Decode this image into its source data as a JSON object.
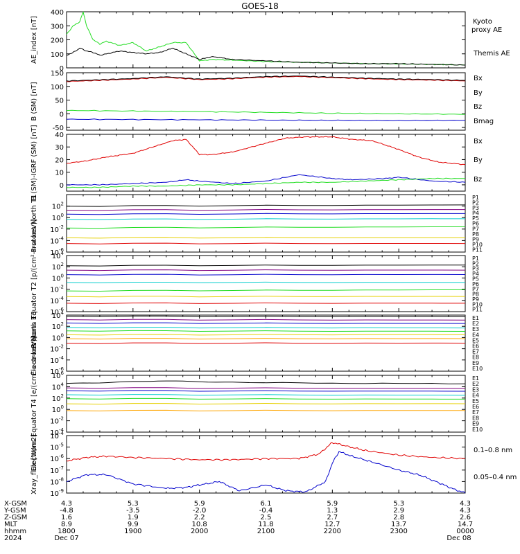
{
  "title": "GOES-18",
  "colors": {
    "black": "#000000",
    "red": "#e00000",
    "green": "#22dd22",
    "blue": "#0000cc",
    "darkblue": "#1b1bb0",
    "cyan": "#00cccc",
    "orange": "#ffa500",
    "yellow": "#e6d000"
  },
  "time_axis": {
    "ticks": [
      "1800",
      "1900",
      "2000",
      "2100",
      "2200",
      "2300",
      "0000"
    ],
    "rows": [
      {
        "label": "X-GSM",
        "values": [
          "4.3",
          "5.3",
          "5.9",
          "6.1",
          "5.9",
          "5.3",
          "4.3"
        ]
      },
      {
        "label": "Y-GSM",
        "values": [
          "-4.8",
          "-3.5",
          "-2.0",
          "-0.4",
          "1.3",
          "2.9",
          "4.3"
        ]
      },
      {
        "label": "Z-GSM",
        "values": [
          "1.6",
          "1.9",
          "2.2",
          "2.5",
          "2.7",
          "2.8",
          "2.6"
        ]
      },
      {
        "label": "MLT",
        "values": [
          "8.9",
          "9.9",
          "10.8",
          "11.8",
          "12.7",
          "13.7",
          "14.7"
        ]
      },
      {
        "label": "hhmm",
        "values": [
          "1800",
          "1900",
          "2000",
          "2100",
          "2200",
          "2300",
          "0000"
        ]
      }
    ],
    "year": "2024",
    "start_date": "Dec 07",
    "end_date": "Dec 08"
  },
  "chart_data": [
    {
      "type": "line",
      "panel": "ae",
      "ylabel": "AE_index [nT]",
      "ylim": [
        0,
        400
      ],
      "yticks": [
        "0",
        "100",
        "200",
        "300",
        "400"
      ],
      "series": [
        {
          "name": "Kyoto proxy AE",
          "color": "#22dd22",
          "x": [
            18.0,
            18.1,
            18.2,
            18.25,
            18.3,
            18.4,
            18.5,
            18.6,
            18.8,
            19.0,
            19.2,
            19.4,
            19.6,
            19.8,
            20.0,
            20.2,
            20.5,
            21.0,
            21.5,
            22.0,
            22.5,
            23.0,
            23.5,
            24.0
          ],
          "values": [
            240,
            300,
            330,
            400,
            300,
            200,
            170,
            190,
            160,
            180,
            120,
            150,
            180,
            180,
            50,
            60,
            55,
            45,
            40,
            35,
            30,
            28,
            25,
            20
          ]
        },
        {
          "name": "Themis AE",
          "color": "#000000",
          "x": [
            18.0,
            18.1,
            18.2,
            18.3,
            18.4,
            18.5,
            18.6,
            18.8,
            19.0,
            19.2,
            19.4,
            19.6,
            19.8,
            20.0,
            20.2,
            20.5,
            21.0,
            21.5,
            22.0,
            22.5,
            23.0,
            23.5,
            24.0
          ],
          "values": [
            90,
            110,
            140,
            120,
            110,
            90,
            100,
            120,
            110,
            100,
            110,
            140,
            100,
            60,
            80,
            60,
            50,
            40,
            35,
            30,
            30,
            25,
            20
          ]
        }
      ]
    },
    {
      "type": "line",
      "panel": "bsm",
      "ylabel": "B (SM) [nT]",
      "ylim": [
        -60,
        150
      ],
      "yticks": [
        "-50",
        "0",
        "50",
        "100",
        "150"
      ],
      "series": [
        {
          "name": "Bx",
          "color": "#0000cc",
          "x": [
            18,
            19,
            20,
            21,
            22,
            23,
            24
          ],
          "values": [
            -20,
            -21,
            -22,
            -23,
            -24,
            -25,
            -24
          ]
        },
        {
          "name": "By",
          "color": "#22dd22",
          "x": [
            18,
            19,
            20,
            21,
            22,
            23,
            24
          ],
          "values": [
            12,
            10,
            8,
            5,
            2,
            0,
            -2
          ]
        },
        {
          "name": "Bz",
          "color": "#e00000",
          "x": [
            18,
            18.5,
            19,
            19.5,
            20,
            20.5,
            21,
            21.5,
            22,
            22.5,
            23,
            23.5,
            24
          ],
          "values": [
            118,
            122,
            127,
            133,
            125,
            128,
            134,
            136,
            132,
            128,
            125,
            123,
            120
          ]
        },
        {
          "name": "Bmag",
          "color": "#000000",
          "x": [
            18,
            18.5,
            19,
            19.5,
            20,
            20.5,
            21,
            21.5,
            22,
            22.5,
            23,
            23.5,
            24
          ],
          "values": [
            120,
            124,
            129,
            135,
            127,
            130,
            136,
            138,
            134,
            130,
            127,
            125,
            122
          ]
        }
      ]
    },
    {
      "type": "line",
      "panel": "bigrf",
      "ylabel": "B (SM)-IGRF (SM) [nT]",
      "ylim": [
        -5,
        40
      ],
      "yticks": [
        "0",
        "10",
        "20",
        "30",
        "40"
      ],
      "series": [
        {
          "name": "Bx",
          "color": "#0000cc",
          "x": [
            18,
            18.5,
            19,
            19.5,
            19.8,
            20,
            20.5,
            21,
            21.5,
            22,
            22.3,
            22.8,
            23,
            23.5,
            24
          ],
          "values": [
            0,
            0,
            1,
            2,
            4,
            3,
            1,
            3,
            8,
            5,
            4,
            5,
            6,
            3,
            2
          ]
        },
        {
          "name": "By",
          "color": "#22dd22",
          "x": [
            18,
            18.5,
            19,
            19.5,
            20,
            20.5,
            21,
            21.5,
            22,
            22.5,
            23,
            23.5,
            24
          ],
          "values": [
            -2,
            -2,
            -1,
            -1,
            0,
            0,
            1,
            2,
            2,
            3,
            4,
            5,
            5
          ]
        },
        {
          "name": "Bz",
          "color": "#e00000",
          "x": [
            18,
            18.3,
            18.6,
            19,
            19.3,
            19.6,
            19.8,
            20,
            20.2,
            20.5,
            21,
            21.3,
            21.6,
            22,
            22.3,
            22.6,
            23,
            23.3,
            23.6,
            24
          ],
          "values": [
            17,
            19,
            22,
            25,
            30,
            35,
            36,
            24,
            24,
            26,
            33,
            37,
            38,
            38,
            36,
            35,
            28,
            22,
            18,
            16
          ]
        }
      ]
    },
    {
      "type": "line",
      "panel": "protons_t1",
      "ylabel": "Protons North T1",
      "ylog": true,
      "ylim": [
        -6,
        4
      ],
      "yticks": [
        "10^-6",
        "10^-4",
        "10^-2",
        "10^0",
        "10^2"
      ],
      "legend": [
        "P1",
        "P2",
        "P3",
        "P4",
        "P5",
        "P6",
        "P7",
        "P8",
        "P9",
        "P10",
        "P11"
      ],
      "series": [
        {
          "name": "P1",
          "color": "#000000",
          "x": [
            18,
            24
          ],
          "values": [
            2.0,
            2.2
          ]
        },
        {
          "name": "P2",
          "color": "#800080",
          "x": [
            18,
            24
          ],
          "values": [
            1.3,
            1.4
          ]
        },
        {
          "name": "P3",
          "color": "#0000cc",
          "x": [
            18,
            24
          ],
          "values": [
            0.6,
            0.7
          ]
        },
        {
          "name": "P4",
          "color": "#00cccc",
          "x": [
            18,
            24
          ],
          "values": [
            -0.3,
            -0.2
          ]
        },
        {
          "name": "P5",
          "color": "#22dd22",
          "x": [
            18,
            24
          ],
          "values": [
            -1.8,
            -1.6
          ]
        },
        {
          "name": "P6",
          "color": "#e6d000",
          "x": [
            18,
            24
          ],
          "values": [
            -3.5,
            -3.5
          ]
        },
        {
          "name": "P7",
          "color": "#e00000",
          "x": [
            18,
            24
          ],
          "values": [
            -4.5,
            -4.5
          ]
        }
      ]
    },
    {
      "type": "line",
      "panel": "protons_t2",
      "ylabel": "Protons Equator T2 [p/(cm²-s-sr-keV)]",
      "ylog": true,
      "ylim": [
        -6,
        4
      ],
      "yticks": [
        "10^-6",
        "10^-4",
        "10^-2",
        "10^0",
        "10^2",
        "10^4"
      ],
      "legend": [
        "P1",
        "P2",
        "P3",
        "P4",
        "P5",
        "P6",
        "P7",
        "P8",
        "P9",
        "P10",
        "P11"
      ],
      "series": [
        {
          "name": "P1",
          "color": "#000000",
          "x": [
            18,
            24
          ],
          "values": [
            2.2,
            2.3
          ]
        },
        {
          "name": "P2",
          "color": "#800080",
          "x": [
            18,
            24
          ],
          "values": [
            1.4,
            1.4
          ]
        },
        {
          "name": "P3",
          "color": "#0000cc",
          "x": [
            18,
            24
          ],
          "values": [
            0.6,
            0.6
          ]
        },
        {
          "name": "P4",
          "color": "#00cccc",
          "x": [
            18,
            24
          ],
          "values": [
            -0.8,
            -0.8
          ]
        },
        {
          "name": "P5",
          "color": "#22dd22",
          "x": [
            18,
            24
          ],
          "values": [
            -2.3,
            -2.1
          ]
        },
        {
          "name": "P6",
          "color": "#e6d000",
          "x": [
            18,
            24
          ],
          "values": [
            -3.3,
            -3.3
          ]
        },
        {
          "name": "P7",
          "color": "#e00000",
          "x": [
            18,
            24
          ],
          "values": [
            -4.5,
            -4.5
          ]
        }
      ]
    },
    {
      "type": "line",
      "panel": "electrons_t3",
      "ylabel": "Electrons North T3",
      "ylog": true,
      "ylim": [
        -6,
        4
      ],
      "yticks": [
        "10^-6",
        "10^-4",
        "10^-2",
        "10^0",
        "10^2",
        "10^4"
      ],
      "legend": [
        "E1",
        "E2",
        "E3",
        "E4",
        "E5",
        "E6",
        "E7",
        "E8",
        "E9",
        "E10"
      ],
      "series": [
        {
          "name": "E1",
          "color": "#000000",
          "x": [
            18,
            24
          ],
          "values": [
            3.8,
            3.7
          ]
        },
        {
          "name": "E2",
          "color": "#800080",
          "x": [
            18,
            24
          ],
          "values": [
            3.2,
            3.1
          ]
        },
        {
          "name": "E3",
          "color": "#0000cc",
          "x": [
            18,
            24
          ],
          "values": [
            2.6,
            2.5
          ]
        },
        {
          "name": "E4",
          "color": "#00cccc",
          "x": [
            18,
            24
          ],
          "values": [
            1.8,
            1.7
          ]
        },
        {
          "name": "E5",
          "color": "#22dd22",
          "x": [
            18,
            24
          ],
          "values": [
            1.2,
            1.1
          ]
        },
        {
          "name": "E6",
          "color": "#e6d000",
          "x": [
            18,
            24
          ],
          "values": [
            0.5,
            0.5
          ]
        },
        {
          "name": "E7",
          "color": "#ffa500",
          "x": [
            18,
            24
          ],
          "values": [
            -0.2,
            -0.2
          ]
        },
        {
          "name": "E8",
          "color": "#e00000",
          "x": [
            18,
            24
          ],
          "values": [
            -1.0,
            -1.0
          ]
        }
      ]
    },
    {
      "type": "line",
      "panel": "electrons_t4",
      "ylabel": "Electrons Equator T4 [e/(cm²-s-sr-keV)]",
      "ylog": true,
      "ylim": [
        -4,
        6
      ],
      "yticks": [
        "10^-4",
        "10^-2",
        "10^0",
        "10^2",
        "10^4",
        "10^6"
      ],
      "legend": [
        "E1",
        "E2",
        "E3",
        "E4",
        "E5",
        "E6",
        "E7",
        "E8",
        "E9",
        "E10"
      ],
      "series": [
        {
          "name": "E1",
          "color": "#000000",
          "x": [
            18,
            19.5,
            21,
            24
          ],
          "values": [
            4.6,
            5.0,
            4.7,
            4.5
          ]
        },
        {
          "name": "E2",
          "color": "#800080",
          "x": [
            18,
            24
          ],
          "values": [
            3.8,
            3.7
          ]
        },
        {
          "name": "E3",
          "color": "#0000cc",
          "x": [
            18,
            24
          ],
          "values": [
            3.3,
            3.2
          ]
        },
        {
          "name": "E4",
          "color": "#00cccc",
          "x": [
            18,
            24
          ],
          "values": [
            2.6,
            2.5
          ]
        },
        {
          "name": "E5",
          "color": "#22dd22",
          "x": [
            18,
            24
          ],
          "values": [
            1.9,
            1.8
          ]
        },
        {
          "name": "E6",
          "color": "#e6d000",
          "x": [
            18,
            24
          ],
          "values": [
            1.0,
            1.0
          ]
        },
        {
          "name": "E7",
          "color": "#ffa500",
          "x": [
            18,
            24
          ],
          "values": [
            -0.2,
            -0.2
          ]
        }
      ]
    },
    {
      "type": "line",
      "panel": "xray",
      "ylabel": "Xray_flux [W/m2]",
      "ylog": true,
      "ylim": [
        -9,
        -4
      ],
      "yticks": [
        "10^-9",
        "10^-8",
        "10^-7",
        "10^-6",
        "10^-5",
        "10^-4"
      ],
      "series": [
        {
          "name": "0.1–0.8 nm",
          "color": "#e00000",
          "x": [
            18,
            18.3,
            18.6,
            19,
            19.5,
            20,
            20.5,
            21,
            21.5,
            21.8,
            22.0,
            22.2,
            22.5,
            23,
            23.5,
            24
          ],
          "values": [
            -6.2,
            -5.9,
            -5.8,
            -5.9,
            -6.0,
            -6.1,
            -6.1,
            -6.0,
            -6.0,
            -5.6,
            -4.6,
            -4.9,
            -5.3,
            -5.7,
            -5.9,
            -6.0
          ]
        },
        {
          "name": "0.05–0.4 nm",
          "color": "#0000cc",
          "x": [
            18,
            18.3,
            18.6,
            19,
            19.5,
            19.8,
            20,
            20.3,
            20.6,
            21,
            21.3,
            21.6,
            21.9,
            22.0,
            22.1,
            22.3,
            22.6,
            23,
            23.3,
            23.6,
            23.8,
            24
          ],
          "values": [
            -8.0,
            -7.4,
            -7.4,
            -8.2,
            -8.6,
            -8.5,
            -8.3,
            -8.0,
            -8.8,
            -8.3,
            -8.8,
            -8.9,
            -8.0,
            -6.4,
            -5.4,
            -5.8,
            -6.3,
            -7.0,
            -7.4,
            -8.1,
            -8.6,
            -9.0
          ]
        }
      ]
    }
  ],
  "legends": {
    "ae": [
      "Kyoto proxy AE",
      "Themis AE"
    ],
    "bsm": [
      "Bx",
      "By",
      "Bz",
      "Bmag"
    ],
    "bigrf": [
      "Bx",
      "By",
      "Bz"
    ],
    "xray": [
      "0.1–0.8 nm",
      "0.05–0.4 nm"
    ]
  }
}
